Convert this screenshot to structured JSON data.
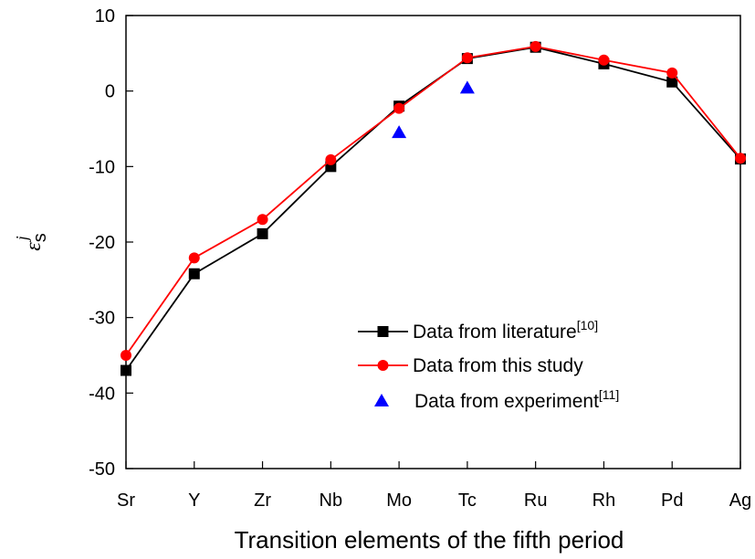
{
  "chart_data": {
    "type": "line",
    "xlabel": "Transition elements of the fifth period",
    "ylabel": {
      "main": "ε",
      "sub": "s",
      "sup": "j"
    },
    "categories": [
      "Sr",
      "Y",
      "Zr",
      "Nb",
      "Mo",
      "Tc",
      "Ru",
      "Rh",
      "Pd",
      "Ag"
    ],
    "ylim": [
      -50,
      10
    ],
    "yticks": [
      10,
      0,
      -10,
      -20,
      -30,
      -40,
      -50
    ],
    "grid": false,
    "legend_position": "lower-right",
    "series": [
      {
        "name": "Data from literature",
        "name_ref": "[10]",
        "color": "#000000",
        "marker": "square",
        "line": true,
        "values": [
          -37.0,
          -24.2,
          -18.9,
          -10.0,
          -2.0,
          4.3,
          5.8,
          3.6,
          1.2,
          -9.0
        ]
      },
      {
        "name": "Data from this study",
        "name_ref": "",
        "color": "#ff0000",
        "marker": "circle",
        "line": true,
        "values": [
          -35.0,
          -22.1,
          -17.0,
          -9.1,
          -2.3,
          4.4,
          5.9,
          4.1,
          2.4,
          -8.9
        ]
      },
      {
        "name": "Data from experiment",
        "name_ref": "[11]",
        "color": "#0000ff",
        "marker": "triangle",
        "line": false,
        "values": [
          null,
          null,
          null,
          null,
          -5.5,
          0.4,
          null,
          null,
          null,
          null
        ]
      }
    ]
  }
}
